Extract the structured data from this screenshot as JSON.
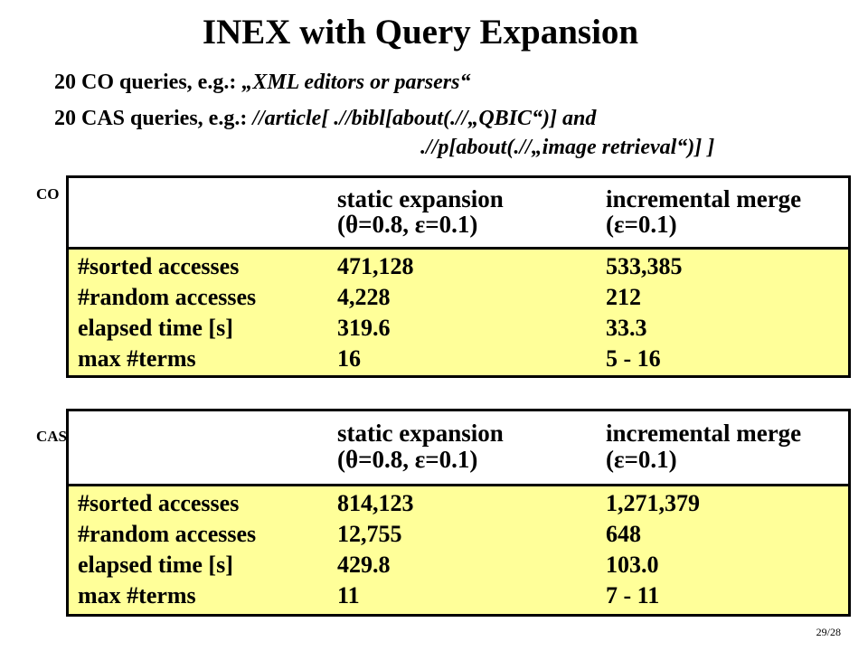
{
  "title": "INEX with Query Expansion",
  "queries": {
    "co_prefix": "20 CO queries, e.g.: ",
    "co_example": "„XML editors or parsers“",
    "cas_prefix": "20 CAS queries, e.g.: ",
    "cas_example_1": "//article[ .//bibl[about(.//„QBIC“)] and",
    "cas_example_2": ".//p[about(.//„image retrieval“)] ]"
  },
  "tables": [
    {
      "label": "CO",
      "header": {
        "col1_line1": "static expansion",
        "col1_line2": "(θ=0.8, ε=0.1)",
        "col2_line1": "incremental merge",
        "col2_line2": "(ε=0.1)"
      },
      "rows": [
        {
          "metric": "#sorted accesses",
          "static": "471,128",
          "incremental": "533,385"
        },
        {
          "metric": "#random accesses",
          "static": "4,228",
          "incremental": "212"
        },
        {
          "metric": "elapsed time [s]",
          "static": "319.6",
          "incremental": "33.3"
        },
        {
          "metric": "max #terms",
          "static": "16",
          "incremental": "5 - 16"
        }
      ]
    },
    {
      "label": "CAS",
      "header": {
        "col1_line1": "static expansion",
        "col1_line2": "(θ=0.8, ε=0.1)",
        "col2_line1": "incremental merge",
        "col2_line2": "(ε=0.1)"
      },
      "rows": [
        {
          "metric": "#sorted accesses",
          "static": "814,123",
          "incremental": "1,271,379"
        },
        {
          "metric": "#random accesses",
          "static": "12,755",
          "incremental": "648"
        },
        {
          "metric": "elapsed time [s]",
          "static": "429.8",
          "incremental": "103.0"
        },
        {
          "metric": "max #terms",
          "static": "11",
          "incremental": "7 - 11"
        }
      ]
    }
  ],
  "page_number": "29/28",
  "colors": {
    "table_fill": "#ffff99",
    "border": "#000000"
  }
}
